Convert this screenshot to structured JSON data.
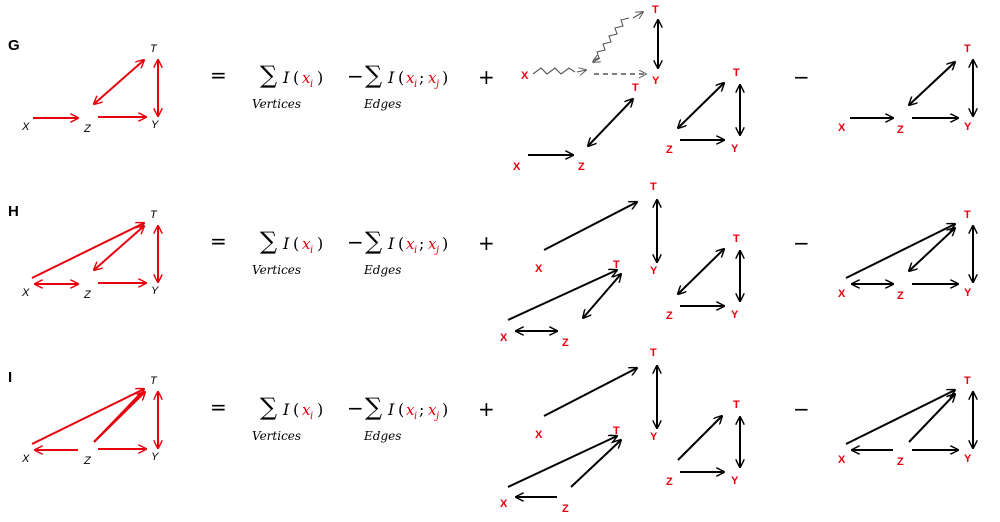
{
  "panels": [
    {
      "id": "G",
      "label": "G"
    },
    {
      "id": "H",
      "label": "H"
    },
    {
      "id": "I",
      "label": "I"
    }
  ],
  "nodes": {
    "X": "X",
    "Z": "Z",
    "T": "T",
    "Y": "Y"
  },
  "formula": {
    "equals": "=",
    "sigma": "∑",
    "I": "I",
    "open": "(",
    "close": ")",
    "x": "x",
    "i": "i",
    "j": "j",
    "semicolon": ";",
    "minus": "−",
    "plus": "+",
    "vertices": "Vertices",
    "edges": "Edges"
  },
  "colors": {
    "red": "#e8000d",
    "black": "#000000",
    "gray": "#555555"
  }
}
